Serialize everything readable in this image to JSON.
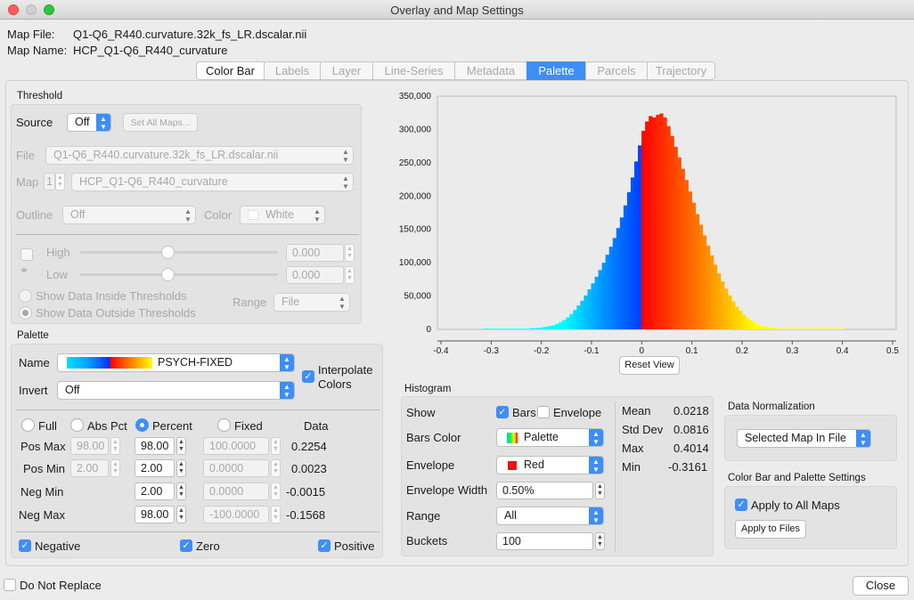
{
  "window": {
    "title": "Overlay and Map Settings"
  },
  "header": {
    "map_file_label": "Map File:",
    "map_file": "Q1-Q6_R440.curvature.32k_fs_LR.dscalar.nii",
    "map_name_label": "Map Name:",
    "map_name": "HCP_Q1-Q6_R440_curvature"
  },
  "tabs": [
    "Color Bar",
    "Labels",
    "Layer",
    "Line-Series",
    "Metadata",
    "Palette",
    "Parcels",
    "Trajectory"
  ],
  "active_tab": "Palette",
  "threshold": {
    "title": "Threshold",
    "source_label": "Source",
    "source_value": "Off",
    "set_all_maps": "Set All Maps...",
    "file_label": "File",
    "file_value": "Q1-Q6_R440.curvature.32k_fs_LR.dscalar.nii",
    "map_label": "Map",
    "map_index": "1",
    "map_value": "HCP_Q1-Q6_R440_curvature",
    "outline_label": "Outline",
    "outline_value": "Off",
    "color_label": "Color",
    "color_value": "White",
    "high_label": "High",
    "high_value": "0.000",
    "low_label": "Low",
    "low_value": "0.000",
    "show_inside": "Show Data Inside Thresholds",
    "show_outside": "Show Data Outside Thresholds",
    "range_label": "Range",
    "range_value": "File"
  },
  "palette": {
    "title": "Palette",
    "name_label": "Name",
    "name_value": "PSYCH-FIXED",
    "interpolate_label": "Interpolate Colors",
    "invert_label": "Invert",
    "invert_value": "Off",
    "modes": [
      "Full",
      "Abs Pct",
      "Percent",
      "Fixed"
    ],
    "selected_mode": "Percent",
    "data_header": "Data",
    "rows": [
      {
        "label": "Pos Max",
        "pct": "98.00",
        "pct2": "98.00",
        "fixed": "100.0000",
        "data": "0.2254"
      },
      {
        "label": "Pos Min",
        "pct": "2.00",
        "pct2": "2.00",
        "fixed": "0.0000",
        "data": "0.0023"
      },
      {
        "label": "Neg Min",
        "pct": "",
        "pct2": "2.00",
        "fixed": "0.0000",
        "data": "-0.0015"
      },
      {
        "label": "Neg Max",
        "pct": "",
        "pct2": "98.00",
        "fixed": "-100.0000",
        "data": "-0.1568"
      }
    ],
    "negative_label": "Negative",
    "zero_label": "Zero",
    "positive_label": "Positive"
  },
  "histogram": {
    "title": "Histogram",
    "show_label": "Show",
    "bars_label": "Bars",
    "envelope_check_label": "Envelope",
    "bars_color_label": "Bars Color",
    "bars_color_value": "Palette",
    "envelope_label": "Envelope",
    "envelope_value": "Red",
    "envelope_width_label": "Envelope Width",
    "envelope_width_value": "0.50%",
    "range_label": "Range",
    "range_value": "All",
    "buckets_label": "Buckets",
    "buckets_value": "100",
    "stats": [
      {
        "k": "Mean",
        "v": "0.0218"
      },
      {
        "k": "Std Dev",
        "v": "0.0816"
      },
      {
        "k": "Max",
        "v": "0.4014"
      },
      {
        "k": "Min",
        "v": "-0.3161"
      }
    ],
    "reset_view": "Reset View"
  },
  "normalization": {
    "title": "Data Normalization",
    "value": "Selected Map In File"
  },
  "colorbar_settings": {
    "title": "Color Bar and Palette Settings",
    "apply_all": "Apply to All Maps",
    "apply_files": "Apply to Files"
  },
  "footer": {
    "do_not_replace": "Do Not Replace",
    "close": "Close"
  },
  "colors": {
    "accent": "#3e8ef7",
    "panel": "#e3e3e3",
    "window": "#ececec"
  },
  "chart_data": {
    "type": "bar",
    "xlim": [
      -0.4,
      0.5
    ],
    "ylim": [
      0,
      350000
    ],
    "x_ticks": [
      "-0.4",
      "-0.3",
      "-0.2",
      "-0.1",
      "0",
      "0.1",
      "0.2",
      "0.3",
      "0.4",
      "0.5"
    ],
    "y_ticks": [
      "0",
      "50,000",
      "100,000",
      "150,000",
      "200,000",
      "250,000",
      "300,000",
      "350,000"
    ],
    "bin_start": -0.3161,
    "bin_width": 0.007175,
    "values": [
      1000,
      1000,
      1000,
      1000,
      1000,
      1000,
      1000,
      1000,
      1000,
      1000,
      1000,
      1000,
      1000,
      2000,
      2000,
      2000,
      3000,
      4000,
      5000,
      6000,
      8000,
      11000,
      14000,
      18000,
      23000,
      29000,
      36000,
      43000,
      51000,
      60000,
      69000,
      79000,
      89000,
      100000,
      112000,
      124000,
      137000,
      152000,
      168000,
      186000,
      206000,
      228000,
      252000,
      276000,
      298000,
      312000,
      320000,
      318000,
      322000,
      324000,
      318000,
      305000,
      290000,
      274000,
      258000,
      241000,
      224000,
      207000,
      190000,
      173000,
      157000,
      141000,
      126000,
      111000,
      97000,
      84000,
      72000,
      61000,
      51000,
      42000,
      34000,
      28000,
      22000,
      17000,
      13000,
      10000,
      7000,
      5000,
      4000,
      3000,
      2000,
      2000,
      1000,
      1000,
      1000,
      1000,
      1000,
      1000,
      1000,
      1000,
      1000,
      1000,
      1000,
      1000,
      1000,
      1000,
      1000,
      1000,
      1000,
      1000
    ]
  }
}
